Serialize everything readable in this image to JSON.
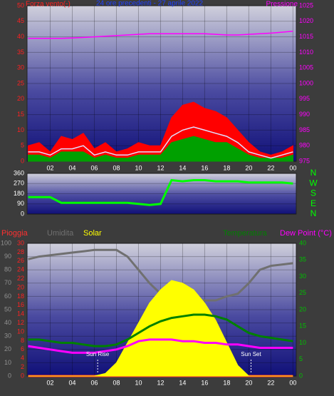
{
  "chart_data": [
    {
      "type": "line",
      "title": "24 ore precedenti - 27 aprile 2022",
      "ylabel": "Forza vento(-)",
      "y2label": "Pressione",
      "x": [
        0,
        1,
        2,
        3,
        4,
        5,
        6,
        7,
        8,
        9,
        10,
        11,
        12,
        13,
        14,
        15,
        16,
        17,
        18,
        19,
        20,
        21,
        22,
        23,
        24
      ],
      "xlim": [
        -0.1,
        24.3
      ],
      "xticks": [
        {
          "value": 2,
          "label": "02"
        },
        {
          "value": 4,
          "label": "04"
        },
        {
          "value": 6,
          "label": "06"
        },
        {
          "value": 8,
          "label": "08"
        },
        10,
        12,
        14,
        16,
        18,
        20,
        22,
        {
          "value": 24,
          "label": "00"
        }
      ],
      "ylim": [
        0,
        50
      ],
      "yticks": [
        0,
        5,
        10,
        15,
        20,
        25,
        30,
        35,
        40,
        45,
        50
      ],
      "y2lim": [
        975,
        1025
      ],
      "y2ticks": [
        975,
        980,
        985,
        990,
        995,
        1000,
        1005,
        1010,
        1015,
        1020,
        1025
      ],
      "grid": true,
      "series": [
        {
          "color": "#ff0000",
          "fill": true,
          "values": [
            5,
            6,
            3,
            8,
            7,
            9,
            4,
            6,
            3,
            4,
            6,
            5,
            5,
            14,
            18,
            19,
            17,
            16,
            14,
            10,
            6,
            3,
            2,
            3,
            5
          ]
        },
        {
          "color": "#00a000",
          "fill": true,
          "values": [
            2,
            2,
            1,
            3,
            3,
            3,
            1,
            2,
            1,
            1,
            2,
            2,
            2,
            6,
            7,
            8,
            7,
            6,
            6,
            4,
            2,
            1,
            1,
            1,
            2
          ]
        },
        {
          "color": "#e0e0ff",
          "values": [
            3,
            3,
            2,
            4,
            4,
            5,
            2,
            3,
            2,
            2,
            3,
            3,
            3,
            8,
            10,
            11,
            10,
            9,
            8,
            6,
            3,
            2,
            1,
            2,
            3
          ]
        },
        {
          "color": "#ff00ff",
          "axis": "y2",
          "values": [
            1014.5,
            1014.5,
            1014.5,
            1014.5,
            1014.6,
            1014.8,
            1015,
            1015.2,
            1015.4,
            1015.6,
            1015.8,
            1016,
            1016,
            1016,
            1016,
            1016,
            1016,
            1015.8,
            1015.6,
            1015.6,
            1015.8,
            1016,
            1016.2,
            1016.5,
            1016.8
          ]
        }
      ]
    },
    {
      "type": "line",
      "x": [
        0,
        1,
        2,
        3,
        4,
        5,
        6,
        7,
        8,
        9,
        10,
        11,
        12,
        13,
        14,
        15,
        16,
        17,
        18,
        19,
        20,
        21,
        22,
        23,
        24
      ],
      "xlim": [
        -0.1,
        24.3
      ],
      "ylim": [
        0,
        360
      ],
      "yticks": [
        0,
        90,
        180,
        270,
        360
      ],
      "y2lim": [
        0,
        360
      ],
      "y2ticks": [
        {
          "value": 360,
          "label": "N"
        },
        {
          "value": 270,
          "label": "W"
        },
        {
          "value": 180,
          "label": "S"
        },
        {
          "value": 90,
          "label": "E"
        },
        {
          "value": 0,
          "label": "N"
        }
      ],
      "grid": true,
      "series": [
        {
          "color": "#00ff00",
          "values": [
            150,
            150,
            150,
            100,
            100,
            100,
            100,
            100,
            100,
            100,
            90,
            80,
            90,
            300,
            290,
            300,
            300,
            290,
            290,
            290,
            280,
            280,
            280,
            280,
            270
          ]
        }
      ]
    },
    {
      "type": "line",
      "x": [
        0,
        1,
        2,
        3,
        4,
        5,
        6,
        7,
        8,
        9,
        10,
        11,
        12,
        13,
        14,
        15,
        16,
        17,
        18,
        19,
        20,
        21,
        22,
        23,
        24
      ],
      "xlim": [
        -0.1,
        24.3
      ],
      "xticks": [
        {
          "value": 2,
          "label": "02"
        },
        {
          "value": 4,
          "label": "04"
        },
        {
          "value": 6,
          "label": "06"
        },
        {
          "value": 8,
          "label": "08"
        },
        10,
        12,
        14,
        16,
        18,
        20,
        22,
        {
          "value": 24,
          "label": "00"
        }
      ],
      "ylim": [
        0,
        100
      ],
      "yticks": [
        0,
        10,
        20,
        30,
        40,
        50,
        60,
        70,
        80,
        90,
        100
      ],
      "y2lim": [
        0,
        30
      ],
      "y2ticks": [
        0,
        2,
        4,
        6,
        8,
        10,
        12,
        14,
        16,
        18,
        20,
        22,
        24,
        26,
        28,
        30
      ],
      "y3lim": [
        0,
        40
      ],
      "y3ticks": [
        0,
        5,
        10,
        15,
        20,
        25,
        30,
        35,
        40
      ],
      "grid": true,
      "annotations": [
        {
          "text": "Sun Rise",
          "x": 6.3
        },
        {
          "text": "Sun Set",
          "x": 20.2
        }
      ],
      "series": [
        {
          "name": "Pioggia",
          "color": "#ff3030",
          "axis": "y2",
          "values": [
            0,
            0,
            0,
            0,
            0,
            0,
            0,
            0,
            0,
            0,
            0,
            0,
            0,
            0,
            0,
            0,
            0,
            0,
            0,
            0,
            0,
            0,
            0,
            0,
            0
          ]
        },
        {
          "name": "Umidita",
          "color": "#707070",
          "values": [
            88,
            90,
            91,
            92,
            93,
            94,
            95,
            95,
            95,
            90,
            80,
            70,
            62,
            60,
            58,
            57,
            57,
            57,
            60,
            62,
            70,
            80,
            83,
            84,
            85
          ]
        },
        {
          "name": "Solar",
          "color": "#ffff00",
          "fill": true,
          "values": [
            0,
            0,
            0,
            0,
            0,
            0,
            0,
            2,
            10,
            25,
            40,
            55,
            65,
            72,
            70,
            65,
            55,
            42,
            25,
            8,
            0,
            0,
            0,
            0,
            0
          ]
        },
        {
          "name": "Temperatura",
          "color": "#008000",
          "axis": "y3",
          "values": [
            11,
            11,
            10.5,
            10,
            10,
            9.5,
            9,
            9,
            9.5,
            11,
            13,
            15,
            16.5,
            17.5,
            18,
            18.5,
            18.5,
            18,
            17,
            15,
            13,
            12,
            11.5,
            11,
            10.5
          ]
        },
        {
          "name": "Dew Point (°C)",
          "color": "#ff00ff",
          "axis": "y3",
          "values": [
            9,
            8.5,
            8,
            7.5,
            7,
            7,
            7,
            7.5,
            8,
            9,
            10.5,
            11,
            11,
            11,
            10.5,
            10.5,
            10,
            10,
            9.5,
            9.5,
            9,
            8.5,
            8.5,
            8.5,
            8.5
          ]
        }
      ]
    }
  ]
}
